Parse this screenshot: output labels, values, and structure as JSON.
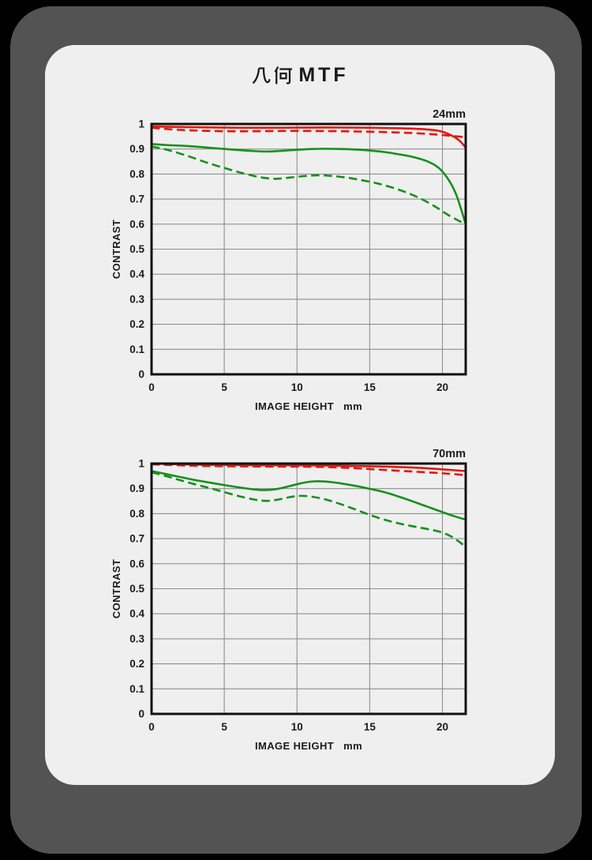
{
  "page": {
    "title": "几何MTF",
    "title_cjk": "几何",
    "title_latin": "MTF",
    "background_color": "#000000",
    "frame_color": "#535353",
    "card_color": "#efefef"
  },
  "colors": {
    "red": "#e3170d",
    "green": "#149119",
    "grid": "#8f8f8f",
    "border": "#111111",
    "text": "#1b1b1b"
  },
  "chart_data": [
    {
      "type": "line",
      "title": "24mm",
      "xlabel": "IMAGE HEIGHT   mm",
      "ylabel": "CONTRAST",
      "xlim": [
        0,
        21.6
      ],
      "ylim": [
        0,
        1
      ],
      "grid": true,
      "legend": "none",
      "xtick_values": [
        0,
        5,
        10,
        15,
        20
      ],
      "xtick_labels": [
        "0",
        "5",
        "10",
        "15",
        "20"
      ],
      "ytick_values": [
        1,
        0.9,
        0.8,
        0.7,
        0.6,
        0.5,
        0.4,
        0.3,
        0.2,
        0.1,
        0
      ],
      "ytick_labels": [
        "1",
        "0.9",
        "0.8",
        "0.7",
        "0.6",
        "0.5",
        "0.4",
        "0.3",
        "0.2",
        "0.1",
        "0"
      ],
      "series": [
        {
          "name": "red-solid",
          "color": "#e3170d",
          "line_style": "solid",
          "points": [
            [
              0,
              0.99
            ],
            [
              3,
              0.987
            ],
            [
              6,
              0.985
            ],
            [
              9,
              0.985
            ],
            [
              12,
              0.986
            ],
            [
              15,
              0.985
            ],
            [
              17,
              0.983
            ],
            [
              18.5,
              0.98
            ],
            [
              19.8,
              0.972
            ],
            [
              20.6,
              0.955
            ],
            [
              21.2,
              0.932
            ],
            [
              21.6,
              0.905
            ]
          ]
        },
        {
          "name": "red-dashed",
          "color": "#e3170d",
          "line_style": "dashed",
          "points": [
            [
              0,
              0.985
            ],
            [
              1.5,
              0.978
            ],
            [
              3,
              0.974
            ],
            [
              5,
              0.971
            ],
            [
              7,
              0.971
            ],
            [
              9,
              0.972
            ],
            [
              11,
              0.972
            ],
            [
              13,
              0.971
            ],
            [
              15,
              0.969
            ],
            [
              17,
              0.966
            ],
            [
              18.5,
              0.962
            ],
            [
              20,
              0.956
            ],
            [
              21.6,
              0.947
            ]
          ]
        },
        {
          "name": "green-solid",
          "color": "#149119",
          "line_style": "solid",
          "points": [
            [
              0,
              0.92
            ],
            [
              1,
              0.916
            ],
            [
              2.5,
              0.912
            ],
            [
              4,
              0.905
            ],
            [
              5.5,
              0.898
            ],
            [
              7,
              0.892
            ],
            [
              8,
              0.89
            ],
            [
              9,
              0.893
            ],
            [
              10,
              0.897
            ],
            [
              11,
              0.9
            ],
            [
              12,
              0.901
            ],
            [
              13,
              0.9
            ],
            [
              14,
              0.898
            ],
            [
              15,
              0.894
            ],
            [
              16,
              0.888
            ],
            [
              17,
              0.879
            ],
            [
              18,
              0.868
            ],
            [
              19,
              0.85
            ],
            [
              19.8,
              0.822
            ],
            [
              20.5,
              0.77
            ],
            [
              21,
              0.71
            ],
            [
              21.6,
              0.6
            ]
          ]
        },
        {
          "name": "green-dashed",
          "color": "#149119",
          "line_style": "dashed",
          "points": [
            [
              0,
              0.91
            ],
            [
              1,
              0.898
            ],
            [
              2.5,
              0.872
            ],
            [
              4,
              0.842
            ],
            [
              5.5,
              0.816
            ],
            [
              6.5,
              0.8
            ],
            [
              7.5,
              0.787
            ],
            [
              8.5,
              0.781
            ],
            [
              9.5,
              0.786
            ],
            [
              10.5,
              0.792
            ],
            [
              11.5,
              0.795
            ],
            [
              12.5,
              0.792
            ],
            [
              13.5,
              0.785
            ],
            [
              14.5,
              0.775
            ],
            [
              15.5,
              0.763
            ],
            [
              16.5,
              0.747
            ],
            [
              17.5,
              0.727
            ],
            [
              18.5,
              0.702
            ],
            [
              19.5,
              0.67
            ],
            [
              20.3,
              0.64
            ],
            [
              21,
              0.617
            ],
            [
              21.6,
              0.6
            ]
          ]
        }
      ]
    },
    {
      "type": "line",
      "title": "70mm",
      "xlabel": "IMAGE HEIGHT   mm",
      "ylabel": "CONTRAST",
      "xlim": [
        0,
        21.6
      ],
      "ylim": [
        0,
        1
      ],
      "grid": true,
      "legend": "none",
      "xtick_values": [
        0,
        5,
        10,
        15,
        20
      ],
      "xtick_labels": [
        "0",
        "5",
        "10",
        "15",
        "20"
      ],
      "ytick_values": [
        1,
        0.9,
        0.8,
        0.7,
        0.6,
        0.5,
        0.4,
        0.3,
        0.2,
        0.1,
        0
      ],
      "ytick_labels": [
        "1",
        "0.9",
        "0.8",
        "0.7",
        "0.6",
        "0.5",
        "0.4",
        "0.3",
        "0.2",
        "0.1",
        "0"
      ],
      "series": [
        {
          "name": "red-solid",
          "color": "#e3170d",
          "line_style": "solid",
          "points": [
            [
              0,
              1.0
            ],
            [
              2,
              0.997
            ],
            [
              4,
              0.995
            ],
            [
              6,
              0.994
            ],
            [
              8,
              0.993
            ],
            [
              10,
              0.993
            ],
            [
              12,
              0.992
            ],
            [
              14,
              0.99
            ],
            [
              16,
              0.988
            ],
            [
              18,
              0.984
            ],
            [
              19.5,
              0.979
            ],
            [
              21.6,
              0.97
            ]
          ]
        },
        {
          "name": "red-dashed",
          "color": "#e3170d",
          "line_style": "dashed",
          "points": [
            [
              0,
              0.997
            ],
            [
              2,
              0.993
            ],
            [
              4,
              0.99
            ],
            [
              6,
              0.989
            ],
            [
              8,
              0.988
            ],
            [
              10,
              0.988
            ],
            [
              12,
              0.986
            ],
            [
              13.5,
              0.983
            ],
            [
              15,
              0.978
            ],
            [
              16.5,
              0.973
            ],
            [
              18,
              0.968
            ],
            [
              19.5,
              0.963
            ],
            [
              20.5,
              0.959
            ],
            [
              21.6,
              0.954
            ]
          ]
        },
        {
          "name": "green-solid",
          "color": "#149119",
          "line_style": "solid",
          "points": [
            [
              0,
              0.97
            ],
            [
              1,
              0.958
            ],
            [
              2,
              0.946
            ],
            [
              3,
              0.934
            ],
            [
              4,
              0.924
            ],
            [
              5,
              0.914
            ],
            [
              6,
              0.905
            ],
            [
              7,
              0.897
            ],
            [
              7.8,
              0.894
            ],
            [
              8.6,
              0.898
            ],
            [
              9.5,
              0.91
            ],
            [
              10.5,
              0.924
            ],
            [
              11.2,
              0.929
            ],
            [
              12,
              0.928
            ],
            [
              13,
              0.921
            ],
            [
              14,
              0.911
            ],
            [
              15,
              0.899
            ],
            [
              16,
              0.886
            ],
            [
              17,
              0.868
            ],
            [
              18,
              0.848
            ],
            [
              19,
              0.827
            ],
            [
              20,
              0.806
            ],
            [
              20.8,
              0.79
            ],
            [
              21.6,
              0.776
            ]
          ]
        },
        {
          "name": "green-dashed",
          "color": "#149119",
          "line_style": "dashed",
          "points": [
            [
              0,
              0.965
            ],
            [
              1,
              0.95
            ],
            [
              2,
              0.933
            ],
            [
              3,
              0.917
            ],
            [
              4,
              0.902
            ],
            [
              5,
              0.886
            ],
            [
              6,
              0.87
            ],
            [
              7,
              0.857
            ],
            [
              7.8,
              0.851
            ],
            [
              8.6,
              0.855
            ],
            [
              9.5,
              0.866
            ],
            [
              10.2,
              0.871
            ],
            [
              11,
              0.868
            ],
            [
              12,
              0.856
            ],
            [
              13,
              0.838
            ],
            [
              14,
              0.817
            ],
            [
              15,
              0.795
            ],
            [
              16,
              0.776
            ],
            [
              17,
              0.761
            ],
            [
              18,
              0.749
            ],
            [
              19,
              0.738
            ],
            [
              19.8,
              0.728
            ],
            [
              20.5,
              0.712
            ],
            [
              21.1,
              0.69
            ],
            [
              21.6,
              0.667
            ]
          ]
        }
      ]
    }
  ]
}
